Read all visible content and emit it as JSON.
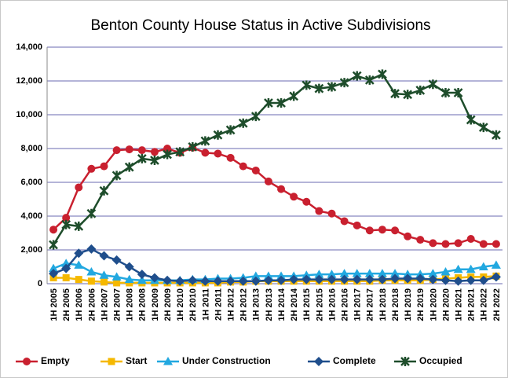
{
  "chart_data": {
    "type": "line",
    "title": "Benton County House Status in Active Subdivisions",
    "categories": [
      "1H 2005",
      "2H 2005",
      "1H 2006",
      "2H 2006",
      "1H 2007",
      "2H 2007",
      "1H 2008",
      "2H 2008",
      "1H 2009",
      "2H 2009",
      "1H 2010",
      "2H 2010",
      "1H 2011",
      "2H 2011",
      "1H 2012",
      "2H 2012",
      "1H 2013",
      "2H 2013",
      "1H 2014",
      "2H 2014",
      "1H 2015",
      "2H 2015",
      "1H 2016",
      "2H 2016",
      "1H 2017",
      "2H 2017",
      "1H 2018",
      "2H 2018",
      "1H 2019",
      "2H 2019",
      "1H 2020",
      "2H 2020",
      "1H 2021",
      "2H 2021",
      "1H 2022",
      "2H 2022"
    ],
    "ylim": [
      0,
      14000
    ],
    "yticks": [
      0,
      {
        "value": 2000,
        "label": "2,000"
      },
      {
        "value": 4000,
        "label": "4,000"
      },
      {
        "value": 6000,
        "label": "6,000"
      },
      {
        "value": 8000,
        "label": "8,000"
      },
      {
        "value": 10000,
        "label": "10,000"
      },
      {
        "value": 12000,
        "label": "12,000"
      },
      {
        "value": 14000,
        "label": "14,000"
      }
    ],
    "grid": true,
    "legend": "bottom",
    "series": [
      {
        "name": "Empty",
        "color": "#c9202f",
        "marker": "circle",
        "values": [
          3200,
          3900,
          5700,
          6800,
          6950,
          7900,
          7950,
          7900,
          7800,
          8000,
          7750,
          8050,
          7750,
          7700,
          7450,
          6950,
          6700,
          6050,
          5600,
          5150,
          4850,
          4300,
          4150,
          3700,
          3450,
          3150,
          3200,
          3150,
          2800,
          2600,
          2400,
          2350,
          2400,
          2650,
          2350,
          2350
        ]
      },
      {
        "name": "Start",
        "color": "#f5b800",
        "marker": "square",
        "values": [
          350,
          350,
          250,
          150,
          100,
          50,
          50,
          50,
          50,
          50,
          50,
          50,
          50,
          50,
          100,
          100,
          150,
          150,
          150,
          150,
          150,
          150,
          150,
          150,
          150,
          150,
          200,
          200,
          200,
          200,
          250,
          300,
          350,
          400,
          400,
          450
        ]
      },
      {
        "name": "Under Construction",
        "color": "#22a8e0",
        "marker": "triangle",
        "values": [
          900,
          1200,
          1100,
          700,
          500,
          400,
          250,
          200,
          200,
          200,
          200,
          250,
          250,
          300,
          300,
          350,
          450,
          450,
          450,
          450,
          500,
          550,
          550,
          600,
          600,
          600,
          600,
          600,
          550,
          550,
          600,
          700,
          850,
          850,
          1000,
          1100
        ]
      },
      {
        "name": "Complete",
        "color": "#1f4e8c",
        "marker": "diamond",
        "values": [
          600,
          900,
          1800,
          2050,
          1650,
          1400,
          1000,
          550,
          350,
          200,
          150,
          200,
          150,
          150,
          150,
          150,
          150,
          200,
          200,
          250,
          250,
          250,
          250,
          250,
          250,
          250,
          250,
          300,
          300,
          300,
          250,
          200,
          150,
          200,
          200,
          400
        ]
      },
      {
        "name": "Occupied",
        "color": "#1e4d2b",
        "marker": "x",
        "values": [
          2300,
          3500,
          3400,
          4150,
          5500,
          6400,
          6900,
          7400,
          7300,
          7650,
          7800,
          8100,
          8450,
          8800,
          9100,
          9500,
          9900,
          10700,
          10700,
          11100,
          11750,
          11550,
          11650,
          11900,
          12300,
          12050,
          12400,
          11250,
          11200,
          11450,
          11800,
          11300,
          11300,
          9700,
          9250,
          8800
        ]
      }
    ]
  }
}
